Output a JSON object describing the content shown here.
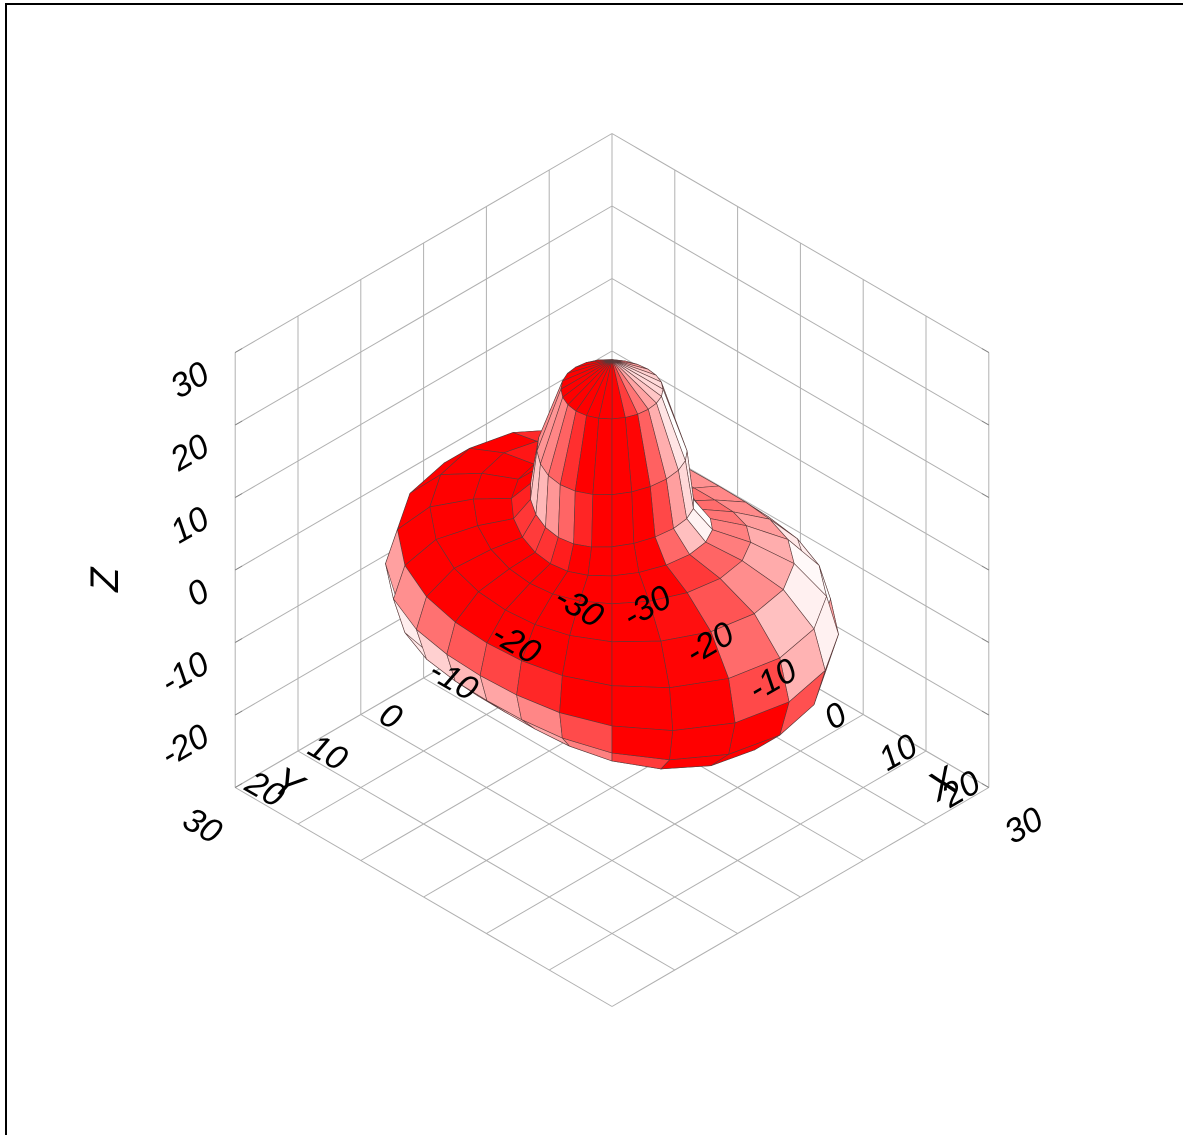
{
  "chart_data": {
    "type": "surface3d",
    "title": "",
    "xlabel": "X",
    "ylabel": "Y",
    "zlabel": "Z",
    "xlim": [
      -30,
      30
    ],
    "ylim": [
      -30,
      30
    ],
    "zlim": [
      -30,
      30
    ],
    "x_ticks": [
      "-30",
      "-20",
      "-10",
      "0",
      "10",
      "20",
      "30"
    ],
    "y_ticks": [
      "-30",
      "-20",
      "-10",
      "0",
      "10",
      "20",
      "30"
    ],
    "z_ticks": [
      "-20",
      "-10",
      "0",
      "10",
      "20",
      "30"
    ],
    "grid": true,
    "surface_color": "#ff0000",
    "highlight_color": "#ffffff",
    "mesh_line_color": "#444444"
  }
}
